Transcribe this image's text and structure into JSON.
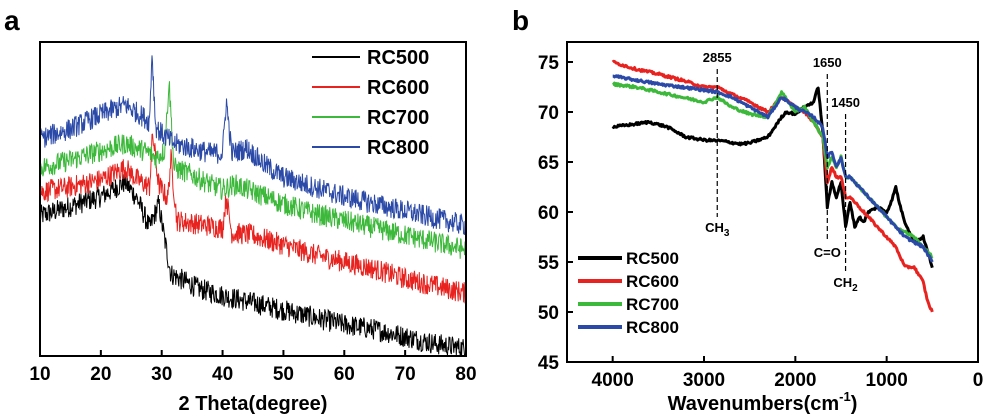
{
  "colors": {
    "RC500": "#000000",
    "RC600": "#e8231f",
    "RC700": "#3cb83a",
    "RC800": "#2b4aa8"
  },
  "chart_data": [
    {
      "panel": "a",
      "type": "line",
      "title": "",
      "xlabel": "2 Theta(degree)",
      "ylabel": "",
      "xlim": [
        10,
        80
      ],
      "xticks": [
        "10",
        "20",
        "30",
        "40",
        "50",
        "60",
        "70",
        "80"
      ],
      "yticks_shown": false,
      "legend_placement": "top-right",
      "series": [
        {
          "name": "RC500",
          "x": [
            10,
            15,
            20,
            24,
            26,
            28,
            29.5,
            30.5,
            31.5,
            33,
            36,
            40,
            45,
            50,
            55,
            60,
            65,
            70,
            75,
            80
          ],
          "y": [
            0.58,
            0.62,
            0.66,
            0.72,
            0.65,
            0.53,
            0.63,
            0.48,
            0.34,
            0.32,
            0.28,
            0.25,
            0.22,
            0.19,
            0.16,
            0.13,
            0.11,
            0.08,
            0.05,
            0.03
          ]
        },
        {
          "name": "RC600",
          "x": [
            10,
            15,
            20,
            24,
            26,
            28,
            28.5,
            29.5,
            30,
            31,
            31.5,
            32.5,
            35,
            40,
            40.6,
            41.5,
            45,
            50,
            55,
            60,
            65,
            70,
            75,
            80
          ],
          "y": [
            0.68,
            0.7,
            0.73,
            0.78,
            0.73,
            0.7,
            0.92,
            0.71,
            0.69,
            0.65,
            0.82,
            0.56,
            0.55,
            0.53,
            0.66,
            0.51,
            0.5,
            0.46,
            0.42,
            0.39,
            0.36,
            0.32,
            0.29,
            0.26
          ]
        },
        {
          "name": "RC700",
          "x": [
            10,
            15,
            20,
            24,
            28,
            29,
            30.5,
            31.2,
            32,
            35,
            38,
            40,
            42,
            45,
            50,
            55,
            60,
            65,
            70,
            75,
            80
          ],
          "y": [
            0.78,
            0.81,
            0.85,
            0.88,
            0.84,
            0.82,
            0.85,
            1.14,
            0.78,
            0.75,
            0.71,
            0.69,
            0.71,
            0.68,
            0.63,
            0.59,
            0.56,
            0.53,
            0.5,
            0.47,
            0.44
          ]
        },
        {
          "name": "RC800",
          "x": [
            10,
            15,
            20,
            24,
            27,
            28,
            28.4,
            29,
            30,
            32,
            35,
            38,
            40,
            40.6,
            41.5,
            44,
            47,
            50,
            55,
            60,
            65,
            70,
            75,
            80
          ],
          "y": [
            0.9,
            0.94,
            1.0,
            1.04,
            0.99,
            0.97,
            1.26,
            0.95,
            0.92,
            0.88,
            0.86,
            0.84,
            0.84,
            1.06,
            0.84,
            0.86,
            0.79,
            0.74,
            0.7,
            0.66,
            0.63,
            0.6,
            0.57,
            0.54
          ]
        }
      ]
    },
    {
      "panel": "b",
      "type": "line",
      "title": "",
      "xlabel": "Wavenumbers(cm",
      "xlabel_superscript": "-1",
      "xlabel_close": ")",
      "ylabel": "",
      "xlim": [
        4500,
        0
      ],
      "ylim": [
        45,
        77
      ],
      "xticks": [
        "4000",
        "3000",
        "2000",
        "1000",
        "0"
      ],
      "yticks": [
        "45",
        "50",
        "55",
        "60",
        "65",
        "70",
        "75"
      ],
      "legend_placement": "bottom-left",
      "annotations": [
        {
          "label": "2855",
          "x": 2855,
          "y_label": 75
        },
        {
          "label": "CH",
          "subscript": "3",
          "x": 2855,
          "y_label": 58
        },
        {
          "label": "1650",
          "x": 1650,
          "y_label": 74.5
        },
        {
          "label": "C=O",
          "x": 1650,
          "y_label": 55.5
        },
        {
          "label": "1450",
          "x": 1450,
          "y_label": 70.5
        },
        {
          "label": "CH",
          "subscript": "2",
          "x": 1450,
          "y_label": 52.5
        }
      ],
      "series": [
        {
          "name": "RC500",
          "x": [
            4000,
            3750,
            3600,
            3400,
            3200,
            3000,
            2800,
            2600,
            2500,
            2300,
            2150,
            2100,
            2000,
            1900,
            1800,
            1750,
            1700,
            1650,
            1600,
            1550,
            1500,
            1450,
            1400,
            1350,
            1300,
            1250,
            1200,
            1100,
            1000,
            950,
            900,
            850,
            800,
            700,
            600,
            500
          ],
          "y": [
            68.5,
            68.8,
            69.0,
            68.5,
            67.5,
            67.2,
            67.1,
            66.8,
            66.9,
            67.5,
            69.5,
            70.0,
            69.8,
            70.5,
            71.0,
            72.5,
            68.0,
            60.5,
            63.0,
            61.5,
            63.0,
            58.5,
            61.0,
            58.5,
            59.5,
            59.0,
            60.0,
            60.5,
            60.0,
            61.0,
            62.5,
            60.5,
            59.0,
            57.0,
            57.5,
            54.5
          ]
        },
        {
          "name": "RC600",
          "x": [
            4000,
            3750,
            3500,
            3250,
            3000,
            2855,
            2700,
            2500,
            2300,
            2150,
            2000,
            1900,
            1800,
            1700,
            1650,
            1600,
            1550,
            1500,
            1450,
            1400,
            1300,
            1200,
            1100,
            1000,
            900,
            800,
            700,
            600,
            550,
            500
          ],
          "y": [
            75.0,
            74.3,
            73.8,
            73.2,
            72.5,
            72.5,
            71.8,
            71.0,
            70.0,
            71.5,
            70.5,
            70.0,
            69.0,
            67.5,
            63.0,
            64.5,
            63.5,
            63.5,
            61.5,
            61.5,
            60.5,
            59.5,
            58.5,
            57.5,
            56.5,
            54.5,
            54.5,
            53.0,
            51.0,
            50.0
          ]
        },
        {
          "name": "RC700",
          "x": [
            4000,
            3750,
            3500,
            3250,
            3000,
            2855,
            2700,
            2500,
            2300,
            2150,
            2000,
            1900,
            1800,
            1700,
            1650,
            1600,
            1550,
            1500,
            1450,
            1400,
            1300,
            1200,
            1100,
            1000,
            900,
            800,
            700,
            600,
            500
          ],
          "y": [
            72.8,
            72.5,
            72.0,
            71.5,
            71.0,
            71.5,
            70.5,
            69.8,
            69.5,
            72.0,
            70.0,
            70.5,
            69.0,
            67.5,
            64.5,
            65.5,
            64.5,
            65.5,
            63.5,
            63.5,
            62.5,
            61.5,
            60.5,
            59.5,
            58.5,
            58.0,
            57.5,
            56.5,
            55.5
          ]
        },
        {
          "name": "RC800",
          "x": [
            4000,
            3750,
            3500,
            3250,
            3000,
            2855,
            2700,
            2500,
            2300,
            2150,
            2000,
            1900,
            1800,
            1700,
            1650,
            1600,
            1550,
            1500,
            1450,
            1400,
            1300,
            1200,
            1100,
            1000,
            900,
            800,
            700,
            600,
            500
          ],
          "y": [
            73.6,
            73.2,
            72.8,
            72.5,
            72.2,
            72.0,
            71.5,
            70.5,
            69.5,
            71.5,
            70.5,
            70.0,
            69.5,
            68.5,
            65.5,
            66.0,
            64.5,
            65.5,
            63.5,
            63.5,
            62.5,
            61.5,
            60.5,
            59.5,
            58.5,
            57.5,
            57.0,
            56.5,
            55.0
          ]
        }
      ]
    }
  ]
}
